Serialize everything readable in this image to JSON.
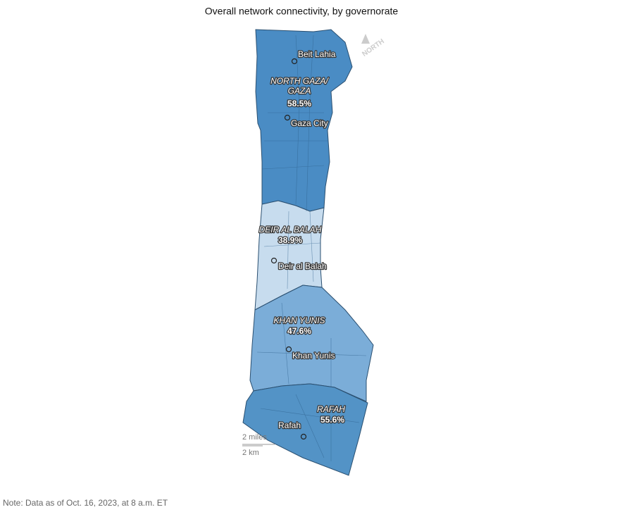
{
  "title": "Overall network connectivity, by governorate",
  "regions": [
    {
      "name": [
        "NORTH GAZA/",
        "GAZA"
      ],
      "connectivity": "58.5%",
      "color": "#4a8cc4"
    },
    {
      "name": [
        "DEIR AL BALAH"
      ],
      "connectivity": "38.9%",
      "color": "#c7dcee"
    },
    {
      "name": [
        "KHAN YUNIS"
      ],
      "connectivity": "47.6%",
      "color": "#7badd8"
    },
    {
      "name": [
        "RAFAH"
      ],
      "connectivity": "55.6%",
      "color": "#5393c6"
    }
  ],
  "cities": [
    "Beit Lahia",
    "Gaza City",
    "Deir al Balah",
    "Khan Yunis",
    "Rafah"
  ],
  "compass": "NORTH",
  "scale": [
    "2 miles",
    "2 km"
  ],
  "note": "Note: Data as of Oct. 16, 2023, at 8 a.m. ET"
}
